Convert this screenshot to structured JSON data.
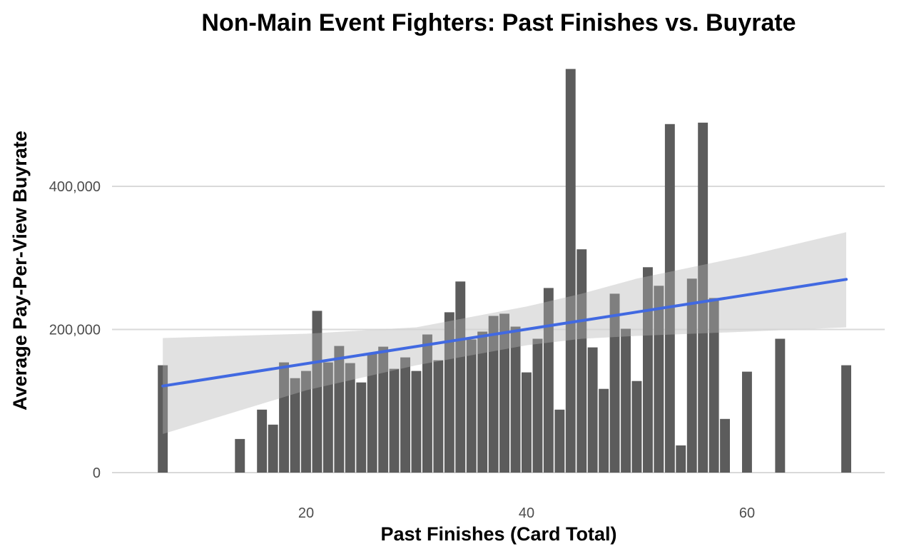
{
  "chart_data": {
    "type": "bar",
    "title": "Non-Main Event Fighters: Past Finishes vs. Buyrate",
    "xlabel": "Past Finishes (Card Total)",
    "ylabel": "Average Pay-Per-View Buyrate",
    "xlim": [
      5,
      70
    ],
    "ylim": [
      0,
      570000
    ],
    "xticks": [
      20,
      40,
      60
    ],
    "xtick_labels": [
      "20",
      "40",
      "60"
    ],
    "yticks": [
      0,
      200000,
      400000
    ],
    "ytick_labels": [
      "0",
      "200,000",
      "400,000"
    ],
    "grid": "horizontal major",
    "legend": "none",
    "bar_color": "#595959",
    "trend_color": "#4169e1",
    "band_color": "#bfbfbf",
    "series": [
      {
        "x": [
          7,
          14,
          16,
          17,
          18,
          19,
          20,
          21,
          22,
          23,
          24,
          25,
          26,
          27,
          28,
          29,
          30,
          31,
          32,
          33,
          34,
          35,
          36,
          37,
          38,
          39,
          40,
          41,
          42,
          43,
          44,
          45,
          46,
          47,
          48,
          49,
          50,
          51,
          52,
          53,
          54,
          55,
          56,
          57,
          58,
          60,
          63,
          69
        ],
        "values": [
          150000,
          47000,
          88000,
          67000,
          154000,
          132000,
          142000,
          226000,
          154000,
          177000,
          153000,
          126000,
          166000,
          176000,
          145000,
          161000,
          142000,
          193000,
          157000,
          224000,
          267000,
          186000,
          197000,
          219000,
          222000,
          204000,
          140000,
          187000,
          258000,
          88000,
          564000,
          312000,
          175000,
          117000,
          250000,
          201000,
          128000,
          287000,
          261000,
          487000,
          38000,
          271000,
          489000,
          244000,
          75000,
          141000,
          187000,
          150000
        ]
      }
    ],
    "trend_line": {
      "x": [
        7,
        69
      ],
      "y": [
        121000,
        270000
      ]
    },
    "confidence_band": {
      "x": [
        7,
        20,
        30,
        40,
        45,
        50,
        60,
        69
      ],
      "upper": [
        188000,
        194000,
        203000,
        232000,
        250000,
        271000,
        303000,
        336000
      ],
      "lower": [
        54000,
        115000,
        150000,
        178000,
        187000,
        191000,
        197000,
        203000
      ]
    }
  }
}
